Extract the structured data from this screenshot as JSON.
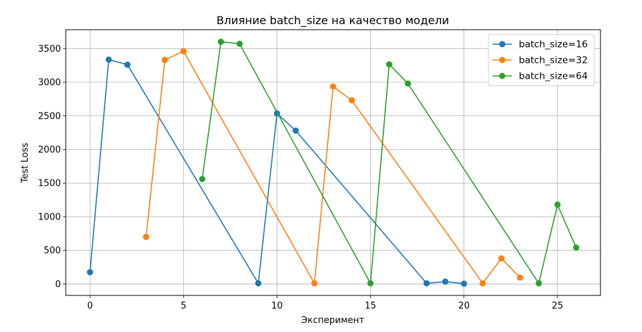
{
  "chart_data": {
    "type": "line",
    "title": "Влияние batch_size на качество модели",
    "xlabel": "Эксперимент",
    "ylabel": "Test Loss",
    "xlim": [
      -1.3,
      27.3
    ],
    "ylim": [
      -170,
      3780
    ],
    "xticks": [
      0,
      5,
      10,
      15,
      20,
      25
    ],
    "yticks": [
      0,
      500,
      1000,
      1500,
      2000,
      2500,
      3000,
      3500
    ],
    "grid": true,
    "legend_position": "top-right",
    "series": [
      {
        "name": "batch_size=16",
        "color": "#1f77b4",
        "x": [
          0,
          1,
          2,
          9,
          10,
          11,
          18,
          19,
          20
        ],
        "y": [
          175,
          3335,
          3260,
          10,
          2535,
          2280,
          10,
          35,
          5
        ]
      },
      {
        "name": "batch_size=32",
        "color": "#ff7f0e",
        "x": [
          3,
          4,
          5,
          12,
          13,
          14,
          21,
          22,
          23
        ],
        "y": [
          700,
          3330,
          3460,
          10,
          2935,
          2730,
          10,
          380,
          95
        ]
      },
      {
        "name": "batch_size=64",
        "color": "#2ca02c",
        "x": [
          6,
          7,
          8,
          15,
          16,
          17,
          24,
          25,
          26
        ],
        "y": [
          1560,
          3600,
          3570,
          10,
          3265,
          2980,
          10,
          1180,
          540
        ]
      }
    ]
  }
}
